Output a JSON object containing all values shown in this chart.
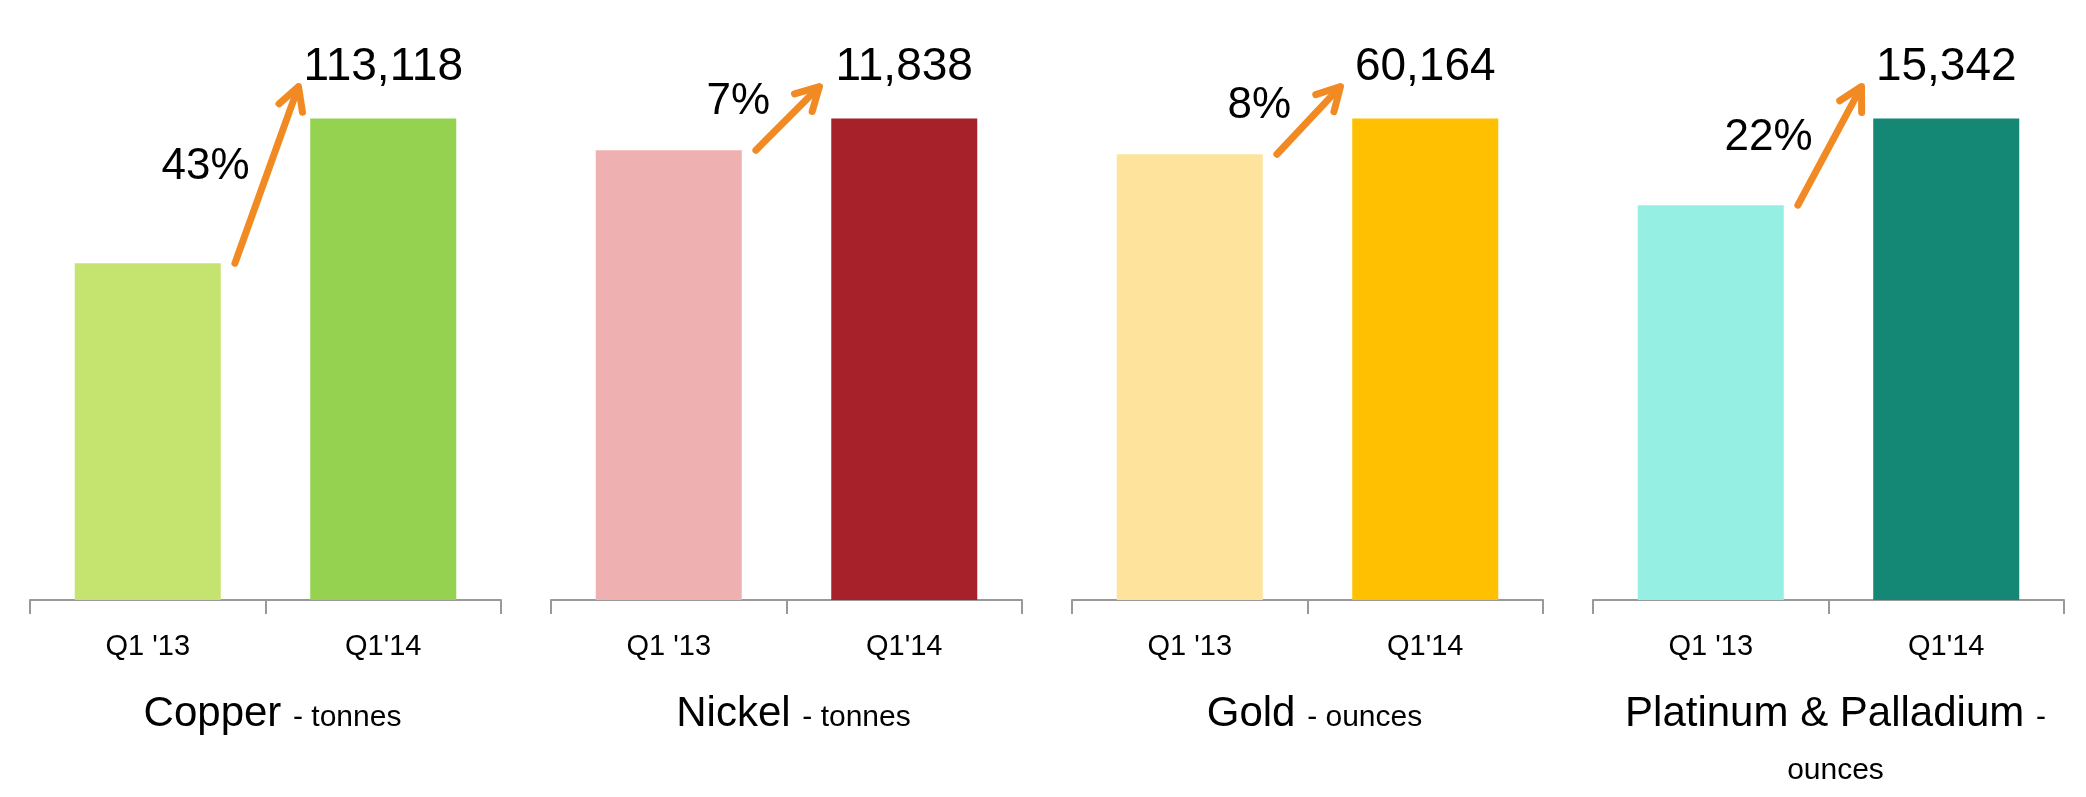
{
  "chart_data": [
    {
      "type": "bar",
      "xlabel": "Copper - tonnes",
      "categories": [
        "Q1 '13",
        "Q1'14"
      ],
      "values": [
        79100,
        113118
      ],
      "colors": [
        "#c5e46f",
        "#94d250"
      ],
      "value_labels": [
        null,
        "113,118"
      ],
      "annotations": [
        "43%"
      ]
    },
    {
      "type": "bar",
      "xlabel": "Nickel - tonnes",
      "categories": [
        "Q1 '13",
        "Q1'14"
      ],
      "values": [
        11060,
        11838
      ],
      "colors": [
        "#efb0b1",
        "#a62129"
      ],
      "value_labels": [
        null,
        "11,838"
      ],
      "annotations": [
        "7%"
      ]
    },
    {
      "type": "bar",
      "xlabel": "Gold - ounces",
      "categories": [
        "Q1 '13",
        "Q1'14"
      ],
      "values": [
        55700,
        60164
      ],
      "colors": [
        "#fde39b",
        "#fec000"
      ],
      "value_labels": [
        null,
        "60,164"
      ],
      "annotations": [
        "8%"
      ]
    },
    {
      "type": "bar",
      "xlabel": "Platinum & Palladium - ounces",
      "categories": [
        "Q1 '13",
        "Q1'14"
      ],
      "values": [
        12580,
        15342
      ],
      "colors": [
        "#95efe3",
        "#158775"
      ],
      "value_labels": [
        null,
        "15,342"
      ],
      "annotations": [
        "22%"
      ]
    }
  ]
}
